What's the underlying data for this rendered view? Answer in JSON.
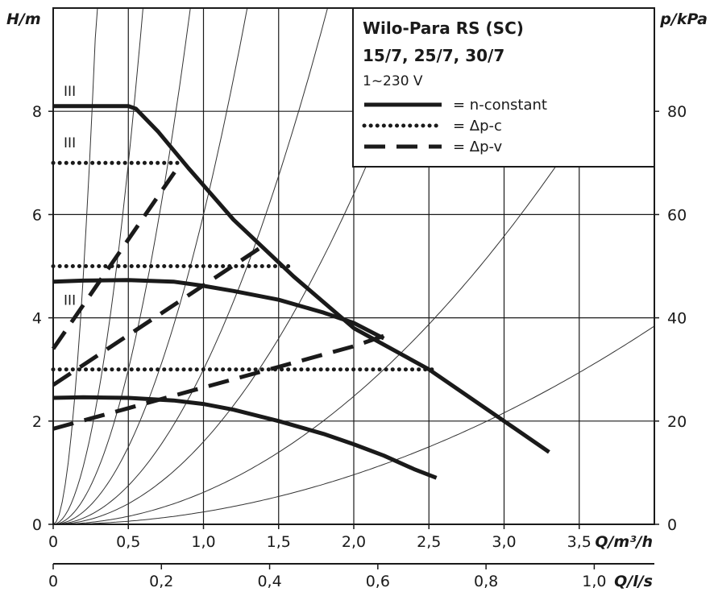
{
  "chart_data": {
    "type": "line",
    "title": "Wilo-Para RS (SC)",
    "subtitle": "15/7, 25/7, 30/7",
    "voltage": "1~230 V",
    "x_axis": {
      "label": "Q/m³/h",
      "range": [
        0,
        4.0
      ],
      "ticks": [
        0,
        0.5,
        1.0,
        1.5,
        2.0,
        2.5,
        3.0,
        3.5
      ],
      "tick_labels": [
        "0",
        "0,5",
        "1,0",
        "1,5",
        "2,0",
        "2,5",
        "3,0",
        "3,5"
      ]
    },
    "x2_axis": {
      "label": "Q/l/s",
      "ticks": [
        0,
        0.2,
        0.4,
        0.6,
        0.8,
        1.0
      ],
      "tick_labels": [
        "0",
        "0,2",
        "0,4",
        "0,6",
        "0,8",
        "1,0"
      ]
    },
    "y_axis": {
      "label": "H/m",
      "range": [
        0,
        10
      ],
      "ticks": [
        0,
        2,
        4,
        6,
        8
      ],
      "tick_labels": [
        "0",
        "2",
        "4",
        "6",
        "8"
      ]
    },
    "y2_axis": {
      "label": "p/kPa",
      "ticks": [
        0,
        20,
        40,
        60,
        80
      ],
      "tick_labels": [
        "0",
        "20",
        "40",
        "60",
        "80"
      ]
    },
    "grid": true,
    "legend": {
      "placement": "top-right",
      "entries": [
        {
          "style": "solid",
          "label": "= n-constant"
        },
        {
          "style": "dotted",
          "label": "= Δp-c"
        },
        {
          "style": "dashed",
          "label": "= Δp-v"
        }
      ]
    },
    "curve_labels": [
      {
        "text": "III",
        "x": 0.07,
        "y": 8.3
      },
      {
        "text": "III",
        "x": 0.07,
        "y": 7.3
      },
      {
        "text": "III",
        "x": 0.07,
        "y": 4.25
      }
    ],
    "series": [
      {
        "style": "solid",
        "x": [
          0,
          0.5,
          0.55,
          0.7,
          0.9,
          1.2,
          1.6,
          2.0,
          2.5,
          3.0,
          3.3
        ],
        "y": [
          8.1,
          8.1,
          8.05,
          7.6,
          6.9,
          5.9,
          4.8,
          3.8,
          3.0,
          2.0,
          1.4
        ]
      },
      {
        "style": "solid",
        "x": [
          0,
          0.2,
          0.5,
          0.8,
          1.0,
          1.2,
          1.5,
          1.8,
          2.0,
          2.2
        ],
        "y": [
          4.7,
          4.72,
          4.73,
          4.7,
          4.62,
          4.52,
          4.35,
          4.1,
          3.9,
          3.6
        ]
      },
      {
        "style": "solid",
        "x": [
          0,
          0.2,
          0.5,
          0.8,
          1.0,
          1.2,
          1.5,
          1.8,
          2.0,
          2.2,
          2.4,
          2.55
        ],
        "y": [
          2.45,
          2.46,
          2.45,
          2.4,
          2.33,
          2.22,
          2.0,
          1.75,
          1.55,
          1.33,
          1.07,
          0.9
        ]
      },
      {
        "style": "dotted",
        "x": [
          0,
          0.85
        ],
        "y": [
          7.0,
          7.0
        ]
      },
      {
        "style": "dotted",
        "x": [
          0,
          1.6
        ],
        "y": [
          5.0,
          5.0
        ]
      },
      {
        "style": "dotted",
        "x": [
          0,
          2.55
        ],
        "y": [
          3.0,
          3.0
        ]
      },
      {
        "style": "dashed",
        "x": [
          0,
          0.85
        ],
        "y": [
          3.4,
          7.0
        ]
      },
      {
        "style": "dashed",
        "x": [
          0,
          1.4
        ],
        "y": [
          2.7,
          5.4
        ]
      },
      {
        "style": "dashed",
        "x": [
          0,
          0.5,
          1.0,
          1.5,
          2.0,
          2.2
        ],
        "y": [
          1.85,
          2.25,
          2.65,
          3.05,
          3.45,
          3.65
        ]
      }
    ],
    "system_curves": {
      "style": "thin",
      "description_free": true,
      "coefficients": [
        120,
        28,
        12,
        6,
        3,
        1.6,
        0.62,
        0.24
      ],
      "formula_y_equals_k_times_x_squared": true
    }
  }
}
